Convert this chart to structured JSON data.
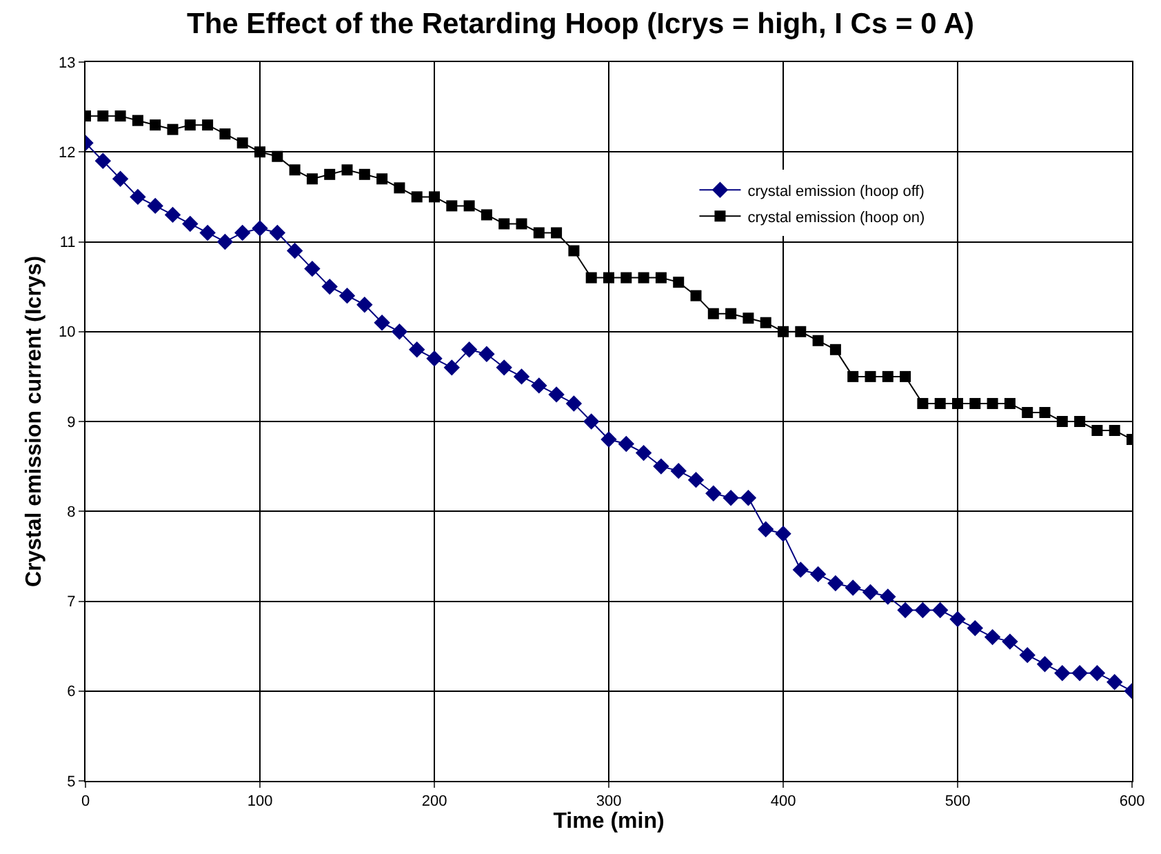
{
  "chart_data": {
    "type": "line",
    "title": "The Effect of the Retarding Hoop (Icrys = high, I Cs = 0 A)",
    "xlabel": "Time (min)",
    "ylabel": "Crystal emission current (Icrys)",
    "x": [
      0,
      10,
      20,
      30,
      40,
      50,
      60,
      70,
      80,
      90,
      100,
      110,
      120,
      130,
      140,
      150,
      160,
      170,
      180,
      190,
      200,
      210,
      220,
      230,
      240,
      250,
      260,
      270,
      280,
      290,
      300,
      310,
      320,
      330,
      340,
      350,
      360,
      370,
      380,
      390,
      400,
      410,
      420,
      430,
      440,
      450,
      460,
      470,
      480,
      490,
      500,
      510,
      520,
      530,
      540,
      550,
      560,
      570,
      580,
      590,
      600
    ],
    "series": [
      {
        "name": "crystal emission (hoop off)",
        "color": "#000080",
        "marker": "diamond",
        "values": [
          12.1,
          11.9,
          11.7,
          11.5,
          11.4,
          11.3,
          11.2,
          11.1,
          11.0,
          11.1,
          11.15,
          11.1,
          10.9,
          10.7,
          10.5,
          10.4,
          10.3,
          10.1,
          10.0,
          9.8,
          9.7,
          9.6,
          9.8,
          9.75,
          9.6,
          9.5,
          9.4,
          9.3,
          9.2,
          9.0,
          8.8,
          8.75,
          8.65,
          8.5,
          8.45,
          8.35,
          8.2,
          8.15,
          8.15,
          7.8,
          7.75,
          7.35,
          7.3,
          7.2,
          7.15,
          7.1,
          7.05,
          6.9,
          6.9,
          6.9,
          6.8,
          6.7,
          6.6,
          6.55,
          6.4,
          6.3,
          6.2,
          6.2,
          6.2,
          6.1,
          6.0
        ]
      },
      {
        "name": "crystal emission (hoop on)",
        "color": "#000000",
        "marker": "square",
        "values": [
          12.4,
          12.4,
          12.4,
          12.35,
          12.3,
          12.25,
          12.3,
          12.3,
          12.2,
          12.1,
          12.0,
          11.95,
          11.8,
          11.7,
          11.75,
          11.8,
          11.75,
          11.7,
          11.6,
          11.5,
          11.5,
          11.4,
          11.4,
          11.3,
          11.2,
          11.2,
          11.1,
          11.1,
          10.9,
          10.6,
          10.6,
          10.6,
          10.6,
          10.6,
          10.55,
          10.4,
          10.2,
          10.2,
          10.15,
          10.1,
          10.0,
          10.0,
          9.9,
          9.8,
          9.5,
          9.5,
          9.5,
          9.5,
          9.2,
          9.2,
          9.2,
          9.2,
          9.2,
          9.2,
          9.1,
          9.1,
          9.0,
          9.0,
          8.9,
          8.9,
          8.8
        ]
      }
    ],
    "xlim": [
      0,
      600
    ],
    "xticks": [
      0,
      100,
      200,
      300,
      400,
      500,
      600
    ],
    "ylim": [
      5,
      13
    ],
    "yticks": [
      5,
      6,
      7,
      8,
      9,
      10,
      11,
      12,
      13
    ],
    "grid": true,
    "legend": "top right",
    "line_style": "solid"
  }
}
